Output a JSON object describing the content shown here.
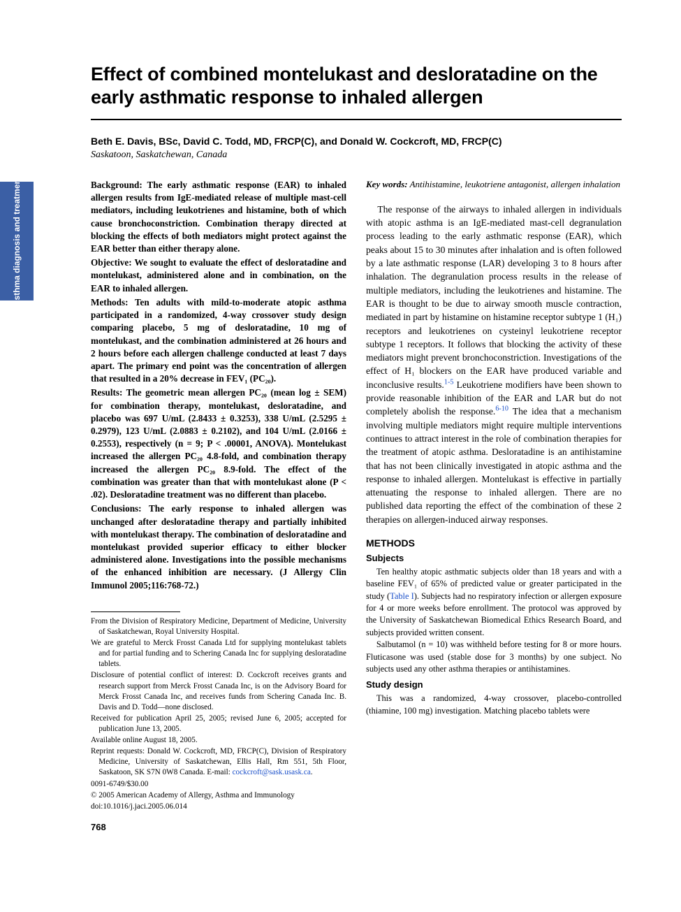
{
  "side_tab": "Asthma diagnosis and\ntreatment",
  "title": "Effect of combined montelukast and desloratadine on the early asthmatic response to inhaled allergen",
  "authors": "Beth E. Davis, BSc, David C. Todd, MD, FRCP(C), and Donald W. Cockcroft, MD, FRCP(C)",
  "affiliation": "Saskatoon, Saskatchewan, Canada",
  "abstract": {
    "background": "Background: The early asthmatic response (EAR) to inhaled allergen results from IgE-mediated release of multiple mast-cell mediators, including leukotrienes and histamine, both of which cause bronchoconstriction. Combination therapy directed at blocking the effects of both mediators might protect against the EAR better than either therapy alone.",
    "objective": "Objective: We sought to evaluate the effect of desloratadine and montelukast, administered alone and in combination, on the EAR to inhaled allergen.",
    "methods": "Methods: Ten adults with mild-to-moderate atopic asthma participated in a randomized, 4-way crossover study design comparing placebo, 5 mg of desloratadine, 10 mg of montelukast, and the combination administered at 26 hours and 2 hours before each allergen challenge conducted at least 7 days apart. The primary end point was the concentration of allergen that resulted in a 20% decrease in FEV₁ (PC₂₀).",
    "results": "Results: The geometric mean allergen PC₂₀ (mean log ± SEM) for combination therapy, montelukast, desloratadine, and placebo was 697 U/mL (2.8433 ± 0.3253), 338 U/mL (2.5295 ± 0.2979), 123 U/mL (2.0883 ± 0.2102), and 104 U/mL (2.0166 ± 0.2553), respectively (n = 9; P < .00001, ANOVA). Montelukast increased the allergen PC₂₀ 4.8-fold, and combination therapy increased the allergen PC₂₀ 8.9-fold. The effect of the combination was greater than that with montelukast alone (P < .02). Desloratadine treatment was no different than placebo.",
    "conclusions": "Conclusions: The early response to inhaled allergen was unchanged after desloratadine therapy and partially inhibited with montelukast therapy. The combination of desloratadine and montelukast provided superior efficacy to either blocker administered alone. Investigations into the possible mechanisms of the enhanced inhibition are necessary. (J Allergy Clin Immunol 2005;116:768-72.)"
  },
  "keywords_label": "Key words:",
  "keywords": "Antihistamine, leukotriene antagonist, allergen inhalation",
  "body_p1_a": "The response of the airways to inhaled allergen in individuals with atopic asthma is an IgE-mediated mast-cell degranulation process leading to the early asthmatic response (EAR), which peaks about 15 to 30 minutes after inhalation and is often followed by a late asthmatic response (LAR) developing 3 to 8 hours after inhalation. The degranulation process results in the release of multiple mediators, including the leukotrienes and histamine. The EAR is thought to be due to airway smooth muscle contraction, mediated in part by histamine on histamine receptor subtype 1 (H₁) receptors and leukotrienes on cysteinyl leukotriene receptor subtype 1 receptors. It follows that blocking the activity of these mediators might prevent bronchoconstriction. Investigations of the effect of H₁ blockers on the EAR have produced variable and inconclusive results.",
  "cite1": "1-5",
  "body_p1_b": " Leukotriene modifiers have been shown to provide reasonable inhibition of the EAR and LAR but do not completely abolish the response.",
  "cite2": "6-10",
  "body_p1_c": " The idea that a mechanism involving multiple mediators might require multiple interventions continues to attract interest in the role of combination therapies for the treatment of atopic asthma. Desloratadine is an antihistamine that has not been clinically investigated in atopic asthma and the response to inhaled allergen. Montelukast is effective in partially attenuating the response to inhaled allergen. There are no published data reporting the effect of the combination of these 2 therapies on allergen-induced airway responses.",
  "methods_h": "METHODS",
  "subjects_h": "Subjects",
  "subjects_p1_a": "Ten healthy atopic asthmatic subjects older than 18 years and with a baseline FEV₁ of 65% of predicted value or greater participated in the study (",
  "table_ref": "Table I",
  "subjects_p1_b": "). Subjects had no respiratory infection or allergen exposure for 4 or more weeks before enrollment. The protocol was approved by the University of Saskatchewan Biomedical Ethics Research Board, and subjects provided written consent.",
  "subjects_p2": "Salbutamol (n = 10) was withheld before testing for 8 or more hours. Fluticasone was used (stable dose for 3 months) by one subject. No subjects used any other asthma therapies or antihistamines.",
  "design_h": "Study design",
  "design_p1": "This was a randomized, 4-way crossover, placebo-controlled (thiamine, 100 mg) investigation. Matching placebo tablets were",
  "footnotes": {
    "f1": "From the Division of Respiratory Medicine, Department of Medicine, University of Saskatchewan, Royal University Hospital.",
    "f2": "We are grateful to Merck Frosst Canada Ltd for supplying montelukast tablets and for partial funding and to Schering Canada Inc for supplying desloratadine tablets.",
    "f3": "Disclosure of potential conflict of interest: D. Cockcroft receives grants and research support from Merck Frosst Canada Inc, is on the Advisory Board for Merck Frosst Canada Inc, and receives funds from Schering Canada Inc. B. Davis and D. Todd—none disclosed.",
    "f4": "Received for publication April 25, 2005; revised June 6, 2005; accepted for publication June 13, 2005.",
    "f5": "Available online August 18, 2005.",
    "f6a": "Reprint requests: Donald W. Cockcroft, MD, FRCP(C), Division of Respiratory Medicine, University of Saskatchewan, Ellis Hall, Rm 551, 5th Floor, Saskatoon, SK S7N 0W8 Canada. E-mail: ",
    "email": "cockcroft@sask.usask.ca",
    "f6b": ".",
    "f7": "0091-6749/$30.00",
    "f8": "© 2005 American Academy of Allergy, Asthma and Immunology",
    "f9": "doi:10.1016/j.jaci.2005.06.014"
  },
  "page_num": "768",
  "colors": {
    "tab_bg": "#3b5fa5",
    "cite": "#1a4fc9"
  }
}
